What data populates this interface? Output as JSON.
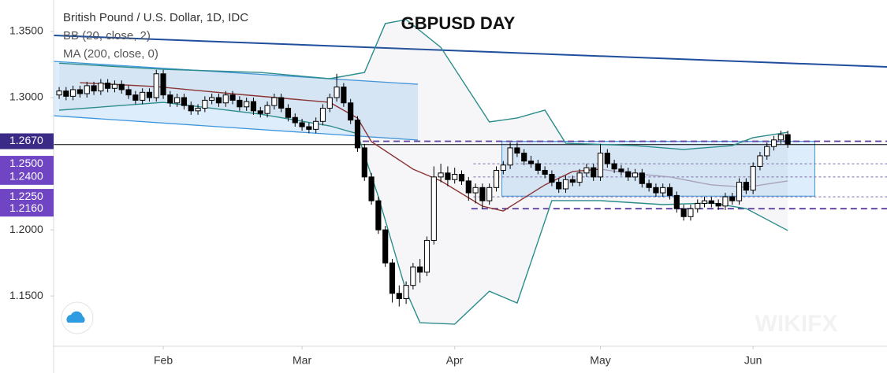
{
  "chart_data": {
    "type": "candlestick",
    "title": "GBPUSD DAY",
    "legend": [
      "British Pound / U.S. Dollar, 1D, IDC",
      "BB (20, close, 2)",
      "MA (200, close, 0)"
    ],
    "watermark": "WIKIFX",
    "categories": [
      null,
      null,
      null,
      null,
      null,
      null,
      null,
      null,
      null,
      null,
      null,
      null,
      null,
      null,
      null,
      "Feb",
      null,
      null,
      null,
      null,
      null,
      null,
      null,
      null,
      null,
      null,
      null,
      null,
      null,
      null,
      null,
      null,
      null,
      null,
      null,
      "Mar",
      null,
      null,
      null,
      null,
      null,
      null,
      null,
      null,
      null,
      null,
      null,
      null,
      null,
      null,
      null,
      null,
      null,
      null,
      null,
      null,
      null,
      "Apr",
      null,
      null,
      null,
      null,
      null,
      null,
      null,
      null,
      null,
      null,
      null,
      null,
      null,
      null,
      null,
      null,
      null,
      null,
      null,
      null,
      "May",
      null,
      null,
      null,
      null,
      null,
      null,
      null,
      null,
      null,
      null,
      null,
      null,
      null,
      null,
      null,
      null,
      null,
      null,
      null,
      null,
      null,
      "Jun",
      null,
      null,
      null,
      null,
      null
    ],
    "open": [
      1.302,
      1.305,
      1.301,
      1.306,
      1.303,
      1.309,
      1.305,
      1.311,
      1.307,
      1.31,
      1.306,
      1.302,
      1.298,
      1.304,
      1.3,
      1.318,
      1.302,
      1.296,
      1.3,
      1.294,
      1.29,
      1.292,
      1.298,
      1.3,
      1.296,
      1.302,
      1.298,
      1.293,
      1.297,
      1.29,
      1.288,
      1.294,
      1.3,
      1.292,
      1.285,
      1.281,
      1.278,
      1.276,
      1.282,
      1.292,
      1.3,
      1.308,
      1.296,
      1.283,
      1.262,
      1.24,
      1.222,
      1.2,
      1.175,
      1.152,
      1.148,
      1.158,
      1.172,
      1.168,
      1.192,
      1.24,
      1.243,
      1.238,
      1.242,
      1.237,
      1.228,
      1.232,
      1.222,
      1.232,
      1.245,
      1.249,
      1.262,
      1.258,
      1.252,
      1.25,
      1.245,
      1.242,
      1.236,
      1.231,
      1.238,
      1.236,
      1.243,
      1.247,
      1.24,
      1.258,
      1.25,
      1.246,
      1.244,
      1.24,
      1.243,
      1.235,
      1.232,
      1.228,
      1.232,
      1.226,
      1.216,
      1.21,
      1.216,
      1.22,
      1.222,
      1.22,
      1.218,
      1.225,
      1.222,
      1.236,
      1.23,
      1.248,
      1.256,
      1.263,
      1.268,
      1.272
    ],
    "high": [
      1.308,
      1.308,
      1.309,
      1.309,
      1.312,
      1.312,
      1.314,
      1.314,
      1.313,
      1.313,
      1.309,
      1.305,
      1.307,
      1.307,
      1.321,
      1.321,
      1.305,
      1.303,
      1.303,
      1.297,
      1.295,
      1.301,
      1.303,
      1.303,
      1.305,
      1.305,
      1.301,
      1.3,
      1.3,
      1.293,
      1.297,
      1.303,
      1.303,
      1.295,
      1.288,
      1.284,
      1.281,
      1.285,
      1.295,
      1.303,
      1.318,
      1.311,
      1.299,
      1.286,
      1.265,
      1.243,
      1.225,
      1.203,
      1.178,
      1.158,
      1.161,
      1.175,
      1.178,
      1.195,
      1.248,
      1.25,
      1.248,
      1.247,
      1.245,
      1.24,
      1.235,
      1.235,
      1.235,
      1.248,
      1.252,
      1.266,
      1.266,
      1.261,
      1.256,
      1.253,
      1.248,
      1.245,
      1.239,
      1.241,
      1.241,
      1.246,
      1.25,
      1.25,
      1.265,
      1.261,
      1.253,
      1.249,
      1.247,
      1.246,
      1.246,
      1.238,
      1.235,
      1.235,
      1.235,
      1.229,
      1.219,
      1.219,
      1.223,
      1.225,
      1.225,
      1.223,
      1.228,
      1.228,
      1.239,
      1.239,
      1.251,
      1.259,
      1.266,
      1.271,
      1.275,
      1.275
    ],
    "low": [
      1.299,
      1.298,
      1.298,
      1.3,
      1.3,
      1.302,
      1.302,
      1.304,
      1.304,
      1.303,
      1.299,
      1.295,
      1.295,
      1.297,
      1.297,
      1.299,
      1.293,
      1.293,
      1.291,
      1.287,
      1.287,
      1.289,
      1.295,
      1.293,
      1.293,
      1.295,
      1.29,
      1.29,
      1.287,
      1.285,
      1.285,
      1.291,
      1.289,
      1.282,
      1.278,
      1.275,
      1.273,
      1.273,
      1.279,
      1.289,
      1.297,
      1.293,
      1.28,
      1.259,
      1.237,
      1.219,
      1.197,
      1.172,
      1.145,
      1.142,
      1.144,
      1.155,
      1.16,
      1.165,
      1.189,
      1.236,
      1.233,
      1.235,
      1.234,
      1.222,
      1.22,
      1.216,
      1.219,
      1.229,
      1.242,
      1.246,
      1.255,
      1.249,
      1.247,
      1.242,
      1.239,
      1.233,
      1.228,
      1.228,
      1.233,
      1.233,
      1.24,
      1.237,
      1.237,
      1.247,
      1.243,
      1.241,
      1.237,
      1.237,
      1.232,
      1.229,
      1.225,
      1.225,
      1.223,
      1.213,
      1.207,
      1.207,
      1.213,
      1.217,
      1.217,
      1.215,
      1.215,
      1.219,
      1.219,
      1.227,
      1.227,
      1.245,
      1.253,
      1.26,
      1.265,
      1.262
    ],
    "close": [
      1.305,
      1.301,
      1.306,
      1.303,
      1.309,
      1.305,
      1.311,
      1.307,
      1.31,
      1.306,
      1.302,
      1.298,
      1.304,
      1.3,
      1.318,
      1.302,
      1.296,
      1.3,
      1.294,
      1.29,
      1.292,
      1.298,
      1.3,
      1.296,
      1.302,
      1.298,
      1.293,
      1.297,
      1.29,
      1.288,
      1.294,
      1.3,
      1.292,
      1.285,
      1.281,
      1.278,
      1.276,
      1.282,
      1.292,
      1.3,
      1.308,
      1.296,
      1.283,
      1.262,
      1.24,
      1.222,
      1.2,
      1.175,
      1.152,
      1.148,
      1.158,
      1.172,
      1.168,
      1.192,
      1.24,
      1.243,
      1.238,
      1.242,
      1.237,
      1.228,
      1.232,
      1.222,
      1.232,
      1.245,
      1.249,
      1.262,
      1.258,
      1.252,
      1.25,
      1.245,
      1.242,
      1.236,
      1.231,
      1.238,
      1.236,
      1.243,
      1.247,
      1.24,
      1.258,
      1.25,
      1.246,
      1.244,
      1.24,
      1.243,
      1.235,
      1.232,
      1.228,
      1.232,
      1.226,
      1.216,
      1.21,
      1.216,
      1.22,
      1.222,
      1.22,
      1.218,
      1.225,
      1.222,
      1.236,
      1.23,
      1.248,
      1.256,
      1.263,
      1.268,
      1.272,
      1.265
    ],
    "up_color": "#ffffff",
    "down_color": "#000000",
    "xlim": [
      -0.8,
      119.3
    ],
    "ylim": [
      1.112,
      1.3738
    ],
    "yticks": [
      {
        "value": 1.35,
        "label": "1.3500"
      },
      {
        "value": 1.3,
        "label": "1.3000"
      },
      {
        "value": 1.2,
        "label": "1.2000"
      },
      {
        "value": 1.15,
        "label": "1.1500"
      }
    ],
    "price_labels": [
      {
        "value": 1.267,
        "label": "1.2670",
        "color": "#3b2a86"
      },
      {
        "value": 1.25,
        "label": "1.2500",
        "color": "#6f45c4"
      },
      {
        "value": 1.24,
        "label": "1.2400",
        "color": "#6f45c4"
      },
      {
        "value": 1.225,
        "label": "1.2250",
        "color": "#6f45c4"
      },
      {
        "value": 1.216,
        "label": "1.2160",
        "color": "#6f45c4"
      }
    ],
    "indicators": [
      {
        "color": "#2b8c8c",
        "x": [
          0,
          15,
          29,
          39,
          44,
          47,
          50,
          55,
          62,
          66,
          70,
          73,
          83,
          90,
          97,
          100,
          105
        ],
        "values": [
          1.326,
          1.3214,
          1.319,
          1.3143,
          1.319,
          1.356,
          1.359,
          1.338,
          1.2816,
          1.2846,
          1.2905,
          1.2655,
          1.2637,
          1.2608,
          1.2637,
          1.2697,
          1.2738
        ]
      },
      {
        "color": "#2b8c8c",
        "x": [
          0,
          15,
          29,
          39,
          43,
          46,
          50,
          52,
          57,
          62,
          66,
          71,
          78,
          87,
          94,
          99,
          105
        ],
        "values": [
          1.2905,
          1.2964,
          1.2875,
          1.2786,
          1.2727,
          1.225,
          1.1536,
          1.1298,
          1.1287,
          1.1536,
          1.1447,
          1.2221,
          1.2221,
          1.2191,
          1.2203,
          1.2161,
          1.1995
        ]
      },
      {
        "color": "#8b3535",
        "x": [
          3,
          14,
          26,
          39,
          43,
          45,
          51,
          55,
          61,
          64,
          70,
          74,
          78
        ],
        "values": [
          1.3113,
          1.3083,
          1.3024,
          1.2964,
          1.2845,
          1.2667,
          1.2459,
          1.237,
          1.2179,
          1.2143,
          1.234,
          1.2441,
          1.2459
        ]
      },
      {
        "color": "#a7a3bd",
        "x": [
          78,
          82,
          88,
          94,
          99,
          105
        ],
        "values": [
          1.2459,
          1.2429,
          1.24,
          1.234,
          1.2322,
          1.237
        ]
      }
    ],
    "trendline": {
      "color": "#1f4e9c",
      "x": [
        -0.8,
        119.3
      ],
      "values": [
        1.347,
        1.3232
      ]
    },
    "channel": {
      "color": "#3d96dd",
      "fill": "#cfe6fa",
      "x": [
        -0.8,
        51.7
      ],
      "upper": [
        1.3274,
        1.3101
      ],
      "lower": [
        1.2863,
        1.2679
      ]
    },
    "box": {
      "color": "#3d96dd",
      "fill": "#cfe6fa",
      "x": [
        63.8,
        108.9
      ],
      "values": [
        1.2255,
        1.267
      ]
    },
    "levels": [
      {
        "value": 1.267,
        "x": [
          43.75,
          119.3
        ],
        "color": "#5b3c9e",
        "style": "dashed"
      },
      {
        "value": 1.216,
        "x": [
          59.4,
          119.3
        ],
        "color": "#5b3c9e",
        "style": "dashed"
      },
      {
        "value": 1.25,
        "x": [
          59.7,
          119.3
        ],
        "color": "#7a6aa8",
        "style": "thin"
      },
      {
        "value": 1.24,
        "x": [
          59.7,
          119.3
        ],
        "color": "#7a6aa8",
        "style": "thin"
      },
      {
        "value": 1.225,
        "x": [
          59.7,
          119.3
        ],
        "color": "#7a6aa8",
        "style": "thin"
      },
      {
        "value": 1.2645,
        "x": [
          -0.8,
          119.3
        ],
        "color": "#000000",
        "style": "solid"
      }
    ]
  }
}
